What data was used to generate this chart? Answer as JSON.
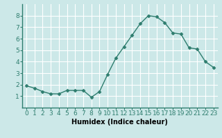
{
  "x": [
    0,
    1,
    2,
    3,
    4,
    5,
    6,
    7,
    8,
    9,
    10,
    11,
    12,
    13,
    14,
    15,
    16,
    17,
    18,
    19,
    20,
    21,
    22,
    23
  ],
  "y": [
    1.9,
    1.7,
    1.4,
    1.2,
    1.2,
    1.5,
    1.5,
    1.5,
    0.9,
    1.4,
    2.9,
    4.3,
    5.3,
    6.3,
    7.3,
    8.0,
    7.9,
    7.4,
    6.5,
    6.4,
    5.2,
    5.1,
    4.0,
    3.5
  ],
  "line_color": "#2e7d6e",
  "marker": "D",
  "markersize": 2.5,
  "linewidth": 1.0,
  "xlabel": "Humidex (Indice chaleur)",
  "ylim": [
    0,
    9
  ],
  "xlim": [
    -0.5,
    23.5
  ],
  "yticks": [
    1,
    2,
    3,
    4,
    5,
    6,
    7,
    8
  ],
  "xtick_labels": [
    "0",
    "1",
    "2",
    "3",
    "4",
    "5",
    "6",
    "7",
    "8",
    "9",
    "10",
    "11",
    "12",
    "13",
    "14",
    "15",
    "16",
    "17",
    "18",
    "19",
    "20",
    "21",
    "22",
    "23"
  ],
  "bg_color": "#cce8e8",
  "grid_color": "#e8f4f4",
  "spine_color": "#2e7d6e",
  "xlabel_fontsize": 7,
  "tick_fontsize": 6.5
}
